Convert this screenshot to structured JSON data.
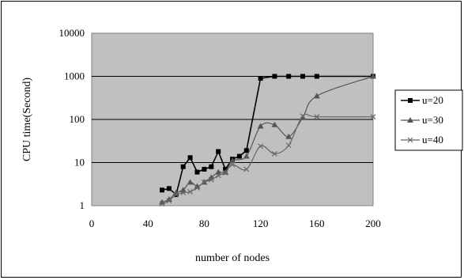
{
  "chart_data": {
    "type": "line",
    "xlabel": "number of nodes",
    "ylabel": "CPU time(Second)",
    "xlim": [
      0,
      200
    ],
    "ylim": [
      1,
      10000
    ],
    "yscale": "log",
    "x_ticks": [
      "0",
      "40",
      "80",
      "120",
      "160",
      "200"
    ],
    "y_ticks": [
      "1",
      "10",
      "100",
      "1000",
      "10000"
    ],
    "grid": "horizontal",
    "plot_background": "#c0c0c0",
    "legend_position": "right",
    "series": [
      {
        "name": "u=20",
        "marker": "square",
        "smooth": false,
        "color": "#000000",
        "points": [
          [
            50,
            2.3
          ],
          [
            55,
            2.5
          ],
          [
            60,
            1.8
          ],
          [
            65,
            8
          ],
          [
            70,
            13
          ],
          [
            75,
            6
          ],
          [
            80,
            7
          ],
          [
            85,
            8
          ],
          [
            90,
            18
          ],
          [
            95,
            7
          ],
          [
            100,
            12
          ],
          [
            105,
            14
          ],
          [
            110,
            19
          ],
          [
            120,
            900
          ],
          [
            130,
            1000
          ],
          [
            140,
            1000
          ],
          [
            150,
            1000
          ],
          [
            160,
            1000
          ],
          [
            200,
            1000
          ]
        ]
      },
      {
        "name": "u=30",
        "marker": "triangle",
        "smooth": true,
        "color": "#555555",
        "points": [
          [
            50,
            1.2
          ],
          [
            55,
            1.4
          ],
          [
            60,
            2
          ],
          [
            65,
            2.3
          ],
          [
            70,
            3.5
          ],
          [
            75,
            2.8
          ],
          [
            80,
            3.5
          ],
          [
            85,
            4.5
          ],
          [
            90,
            6
          ],
          [
            95,
            6
          ],
          [
            100,
            11
          ],
          [
            110,
            14
          ],
          [
            120,
            70
          ],
          [
            130,
            75
          ],
          [
            140,
            40
          ],
          [
            150,
            110
          ],
          [
            160,
            350
          ],
          [
            200,
            1000
          ]
        ]
      },
      {
        "name": "u=40",
        "marker": "x",
        "smooth": true,
        "color": "#666666",
        "points": [
          [
            50,
            1.1
          ],
          [
            55,
            1.3
          ],
          [
            60,
            1.8
          ],
          [
            65,
            2
          ],
          [
            70,
            2.1
          ],
          [
            75,
            2.6
          ],
          [
            80,
            3.5
          ],
          [
            85,
            4
          ],
          [
            90,
            5
          ],
          [
            95,
            5.8
          ],
          [
            100,
            9
          ],
          [
            110,
            7
          ],
          [
            120,
            24
          ],
          [
            130,
            16
          ],
          [
            140,
            25
          ],
          [
            150,
            120
          ],
          [
            160,
            115
          ],
          [
            200,
            115
          ]
        ]
      }
    ]
  }
}
